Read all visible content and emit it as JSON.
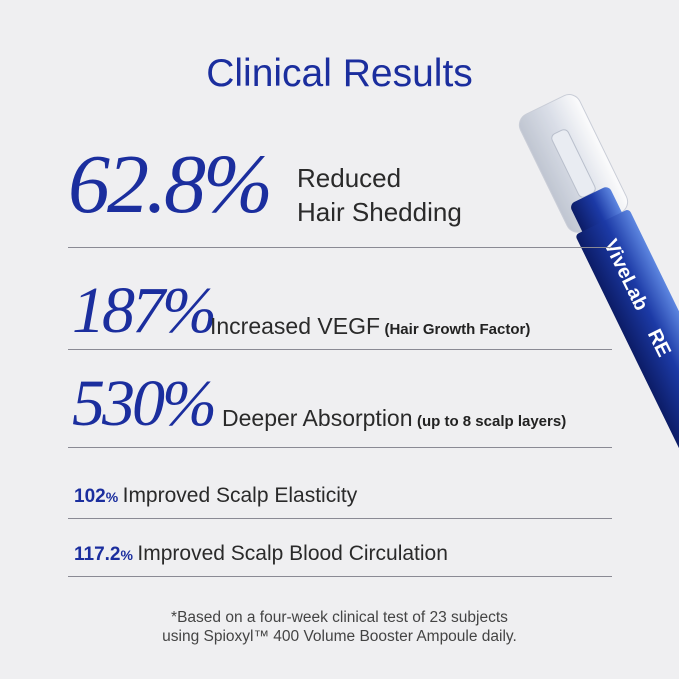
{
  "header": {
    "title": "Clinical Results"
  },
  "results": [
    {
      "stat": "62.8%",
      "label_lines": [
        "Reduced",
        "Hair Shedding"
      ]
    },
    {
      "stat": "187%",
      "label": "Increased VEGF",
      "note": "(Hair Growth Factor)"
    },
    {
      "stat": "530%",
      "label": "Deeper Absorption",
      "note": "(up to 8 scalp layers)"
    },
    {
      "value": "102",
      "unit": "%",
      "label": "Improved Scalp Elasticity"
    },
    {
      "value": "117.2",
      "unit": "%",
      "label": "Improved Scalp Blood Circulation"
    }
  ],
  "product": {
    "brand": "ViveLab",
    "text": "RE"
  },
  "footnote": [
    "*Based on a four-week clinical test of 23 subjects",
    "using Spioxyl™ 400 Volume Booster Ampoule daily."
  ]
}
